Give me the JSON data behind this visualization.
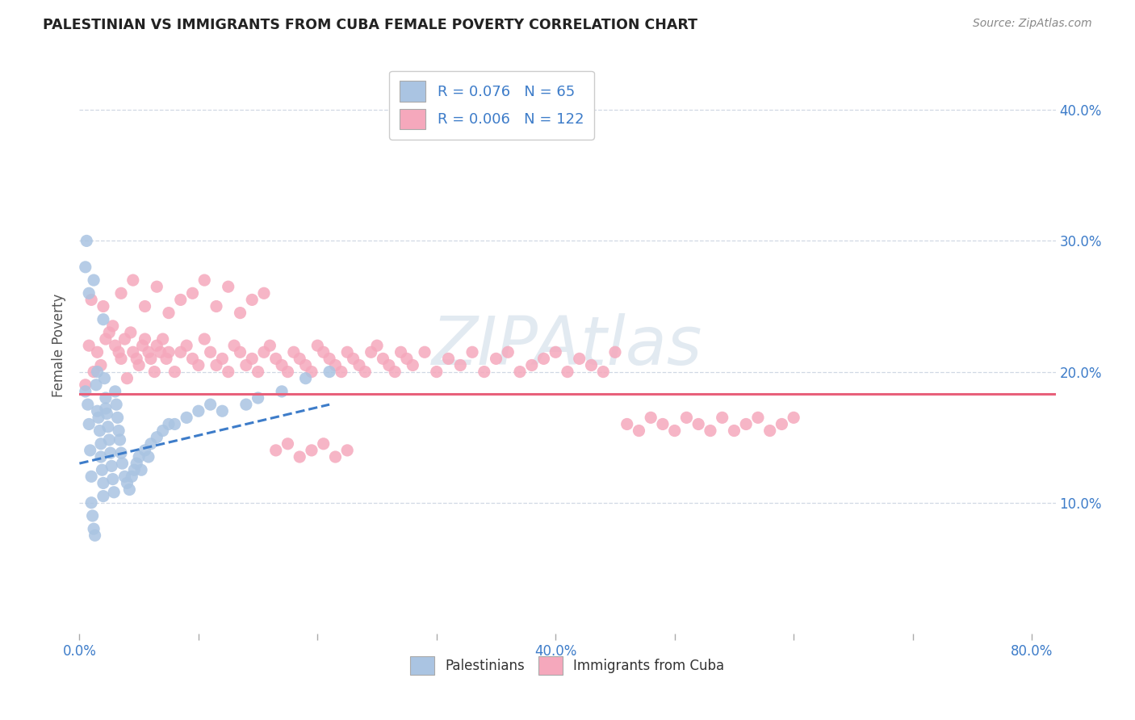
{
  "title": "PALESTINIAN VS IMMIGRANTS FROM CUBA FEMALE POVERTY CORRELATION CHART",
  "source": "Source: ZipAtlas.com",
  "ylabel": "Female Poverty",
  "xlim": [
    0.0,
    0.82
  ],
  "ylim": [
    0.0,
    0.44
  ],
  "xtick_pos": [
    0.0,
    0.1,
    0.2,
    0.3,
    0.4,
    0.5,
    0.6,
    0.7,
    0.8
  ],
  "xtick_labels": [
    "0.0%",
    "",
    "",
    "",
    "40.0%",
    "",
    "",
    "",
    "80.0%"
  ],
  "ytick_positions_right": [
    0.1,
    0.2,
    0.3,
    0.4
  ],
  "ytick_labels_right": [
    "10.0%",
    "20.0%",
    "30.0%",
    "40.0%"
  ],
  "legend_r1": "R = 0.076",
  "legend_n1": "N = 65",
  "legend_r2": "R = 0.006",
  "legend_n2": "N = 122",
  "blue_color": "#aac4e2",
  "pink_color": "#f5a8bc",
  "blue_line_color": "#3d7cc9",
  "pink_line_color": "#e8607a",
  "watermark": "ZIPAtlas",
  "watermark_color": "#d0dce8",
  "background_color": "#ffffff",
  "grid_color": "#d0d8e4",
  "blue_scatter_x": [
    0.005,
    0.007,
    0.008,
    0.009,
    0.01,
    0.01,
    0.011,
    0.012,
    0.013,
    0.014,
    0.015,
    0.015,
    0.016,
    0.017,
    0.018,
    0.018,
    0.019,
    0.02,
    0.02,
    0.021,
    0.022,
    0.022,
    0.023,
    0.024,
    0.025,
    0.026,
    0.027,
    0.028,
    0.029,
    0.03,
    0.031,
    0.032,
    0.033,
    0.034,
    0.035,
    0.036,
    0.038,
    0.04,
    0.042,
    0.044,
    0.046,
    0.048,
    0.05,
    0.052,
    0.055,
    0.058,
    0.06,
    0.065,
    0.07,
    0.075,
    0.08,
    0.09,
    0.1,
    0.11,
    0.12,
    0.14,
    0.15,
    0.17,
    0.19,
    0.21,
    0.005,
    0.006,
    0.008,
    0.012,
    0.02
  ],
  "blue_scatter_y": [
    0.185,
    0.175,
    0.16,
    0.14,
    0.12,
    0.1,
    0.09,
    0.08,
    0.075,
    0.19,
    0.2,
    0.17,
    0.165,
    0.155,
    0.145,
    0.135,
    0.125,
    0.115,
    0.105,
    0.195,
    0.18,
    0.172,
    0.168,
    0.158,
    0.148,
    0.138,
    0.128,
    0.118,
    0.108,
    0.185,
    0.175,
    0.165,
    0.155,
    0.148,
    0.138,
    0.13,
    0.12,
    0.115,
    0.11,
    0.12,
    0.125,
    0.13,
    0.135,
    0.125,
    0.14,
    0.135,
    0.145,
    0.15,
    0.155,
    0.16,
    0.16,
    0.165,
    0.17,
    0.175,
    0.17,
    0.175,
    0.18,
    0.185,
    0.195,
    0.2,
    0.28,
    0.3,
    0.26,
    0.27,
    0.24
  ],
  "pink_scatter_x": [
    0.005,
    0.008,
    0.01,
    0.012,
    0.015,
    0.018,
    0.02,
    0.022,
    0.025,
    0.028,
    0.03,
    0.033,
    0.035,
    0.038,
    0.04,
    0.043,
    0.045,
    0.048,
    0.05,
    0.053,
    0.055,
    0.058,
    0.06,
    0.063,
    0.065,
    0.068,
    0.07,
    0.073,
    0.075,
    0.08,
    0.085,
    0.09,
    0.095,
    0.1,
    0.105,
    0.11,
    0.115,
    0.12,
    0.125,
    0.13,
    0.135,
    0.14,
    0.145,
    0.15,
    0.155,
    0.16,
    0.165,
    0.17,
    0.175,
    0.18,
    0.185,
    0.19,
    0.195,
    0.2,
    0.205,
    0.21,
    0.215,
    0.22,
    0.225,
    0.23,
    0.235,
    0.24,
    0.245,
    0.25,
    0.255,
    0.26,
    0.265,
    0.27,
    0.275,
    0.28,
    0.29,
    0.3,
    0.31,
    0.32,
    0.33,
    0.34,
    0.35,
    0.36,
    0.37,
    0.38,
    0.39,
    0.4,
    0.41,
    0.42,
    0.43,
    0.44,
    0.45,
    0.46,
    0.47,
    0.48,
    0.49,
    0.5,
    0.51,
    0.52,
    0.53,
    0.54,
    0.55,
    0.56,
    0.57,
    0.58,
    0.59,
    0.6,
    0.035,
    0.045,
    0.055,
    0.065,
    0.075,
    0.085,
    0.095,
    0.105,
    0.115,
    0.125,
    0.135,
    0.145,
    0.155,
    0.165,
    0.175,
    0.185,
    0.195,
    0.205,
    0.215,
    0.225
  ],
  "pink_scatter_y": [
    0.19,
    0.22,
    0.255,
    0.2,
    0.215,
    0.205,
    0.25,
    0.225,
    0.23,
    0.235,
    0.22,
    0.215,
    0.21,
    0.225,
    0.195,
    0.23,
    0.215,
    0.21,
    0.205,
    0.22,
    0.225,
    0.215,
    0.21,
    0.2,
    0.22,
    0.215,
    0.225,
    0.21,
    0.215,
    0.2,
    0.215,
    0.22,
    0.21,
    0.205,
    0.225,
    0.215,
    0.205,
    0.21,
    0.2,
    0.22,
    0.215,
    0.205,
    0.21,
    0.2,
    0.215,
    0.22,
    0.21,
    0.205,
    0.2,
    0.215,
    0.21,
    0.205,
    0.2,
    0.22,
    0.215,
    0.21,
    0.205,
    0.2,
    0.215,
    0.21,
    0.205,
    0.2,
    0.215,
    0.22,
    0.21,
    0.205,
    0.2,
    0.215,
    0.21,
    0.205,
    0.215,
    0.2,
    0.21,
    0.205,
    0.215,
    0.2,
    0.21,
    0.215,
    0.2,
    0.205,
    0.21,
    0.215,
    0.2,
    0.21,
    0.205,
    0.2,
    0.215,
    0.16,
    0.155,
    0.165,
    0.16,
    0.155,
    0.165,
    0.16,
    0.155,
    0.165,
    0.155,
    0.16,
    0.165,
    0.155,
    0.16,
    0.165,
    0.26,
    0.27,
    0.25,
    0.265,
    0.245,
    0.255,
    0.26,
    0.27,
    0.25,
    0.265,
    0.245,
    0.255,
    0.26,
    0.14,
    0.145,
    0.135,
    0.14,
    0.145,
    0.135,
    0.14
  ],
  "blue_line_x": [
    0.0,
    0.21
  ],
  "blue_line_y": [
    0.13,
    0.175
  ],
  "pink_line_x": [
    0.0,
    0.82
  ],
  "pink_line_y": [
    0.183,
    0.183
  ]
}
